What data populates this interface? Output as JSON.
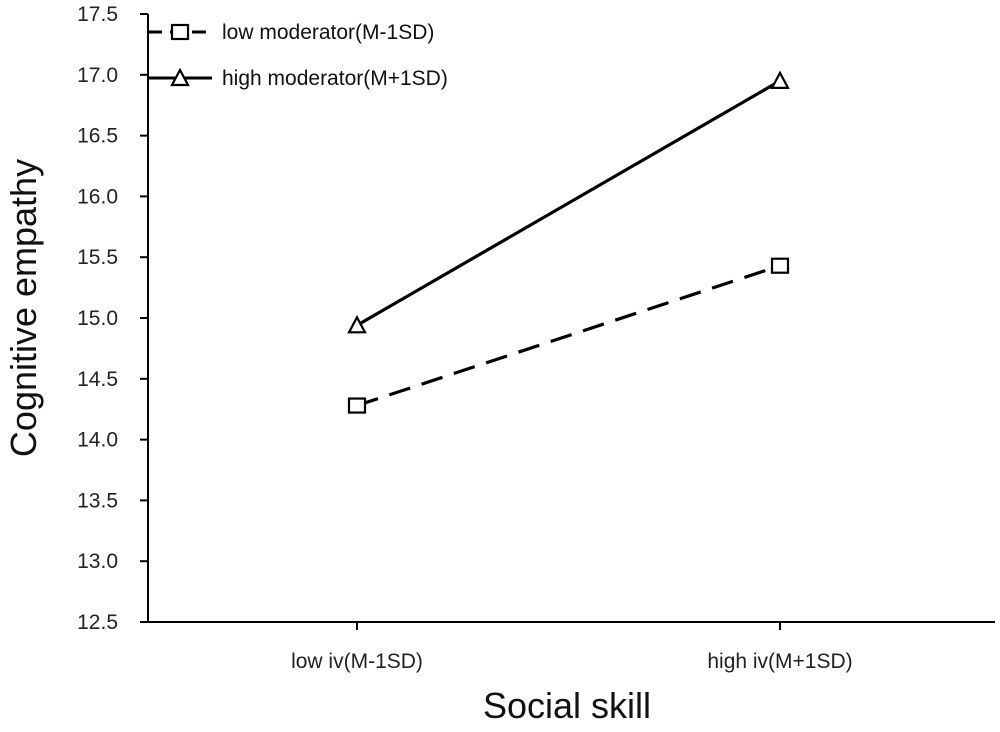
{
  "chart_data": {
    "type": "line",
    "title": "",
    "xlabel": "Social skill",
    "ylabel": "Cognitive empathy",
    "categories": [
      "low iv(M-1SD)",
      "high iv(M+1SD)"
    ],
    "ylim": [
      12.5,
      17.5
    ],
    "yticks": [
      "12.5",
      "13.0",
      "13.5",
      "14.0",
      "14.5",
      "15.0",
      "15.5",
      "16.0",
      "16.5",
      "17.0",
      "17.5"
    ],
    "grid": false,
    "legend_position": "top-left",
    "series": [
      {
        "name": "low moderator(M-1SD)",
        "values": [
          14.28,
          15.43
        ],
        "marker": "square",
        "line_style": "dashed",
        "color": "#000000"
      },
      {
        "name": "high moderator(M+1SD)",
        "values": [
          14.94,
          16.95
        ],
        "marker": "triangle",
        "line_style": "solid",
        "color": "#000000"
      }
    ]
  }
}
